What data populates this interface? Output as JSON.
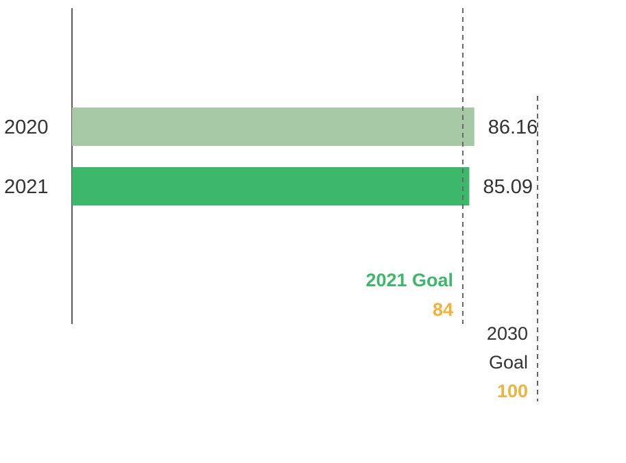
{
  "chart_data": {
    "type": "bar",
    "orientation": "horizontal",
    "categories": [
      "2020",
      "2021"
    ],
    "values": [
      86.16,
      85.09
    ],
    "value_labels": [
      "86.16",
      "85.09"
    ],
    "bar_colors": [
      "#a6c8a5",
      "#3db86a"
    ],
    "xlim": [
      0,
      100
    ],
    "grid": false,
    "reference_lines": [
      {
        "label_lines": [
          "2021 Goal"
        ],
        "value": 84,
        "value_label": "84",
        "label_color": "#3db86a",
        "value_color": "#f2b33d",
        "line_color": "#666666"
      },
      {
        "label_lines": [
          "2030",
          "Goal"
        ],
        "value": 100,
        "value_label": "100",
        "label_color": "#333333",
        "value_color": "#f2b33d",
        "line_color": "#666666"
      }
    ]
  }
}
